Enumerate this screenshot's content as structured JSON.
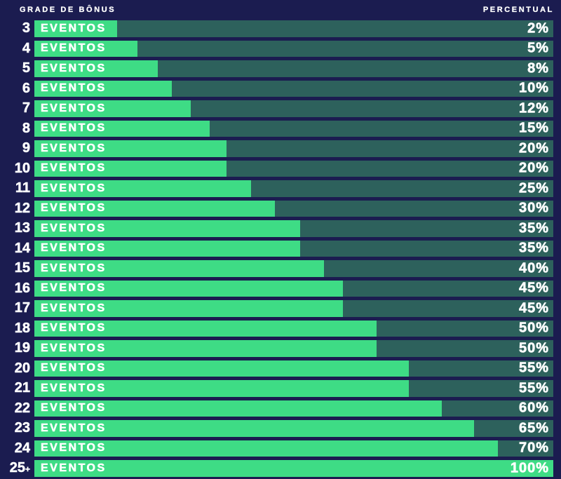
{
  "header": {
    "left": "GRADE DE BÔNUS",
    "right": "PERCENTUAL"
  },
  "colors": {
    "background": "#1b1c50",
    "track": "#2d615c",
    "fill": "#3edc85",
    "text": "#ffffff"
  },
  "chart_data": {
    "type": "bar",
    "orientation": "horizontal",
    "title": "GRADE DE BÔNUS",
    "xlabel": "PERCENTUAL",
    "ylabel": "GRADE DE BÔNUS",
    "bar_text": "EVENTOS",
    "categories": [
      "3",
      "4",
      "5",
      "6",
      "7",
      "8",
      "9",
      "10",
      "11",
      "12",
      "13",
      "14",
      "15",
      "16",
      "17",
      "18",
      "19",
      "20",
      "21",
      "22",
      "23",
      "24",
      "25+"
    ],
    "values": [
      2,
      5,
      8,
      10,
      12,
      15,
      20,
      20,
      25,
      30,
      35,
      35,
      40,
      45,
      45,
      50,
      50,
      55,
      55,
      60,
      65,
      70,
      100
    ],
    "value_labels": [
      "2%",
      "5%",
      "8%",
      "10%",
      "12%",
      "15%",
      "20%",
      "20%",
      "25%",
      "30%",
      "35%",
      "35%",
      "40%",
      "45%",
      "45%",
      "50%",
      "50%",
      "55%",
      "55%",
      "60%",
      "65%",
      "70%",
      "100%"
    ],
    "bar_fill_pct_of_track": [
      15.9,
      19.9,
      23.8,
      26.5,
      30.1,
      33.8,
      37.0,
      37.0,
      41.8,
      46.4,
      51.2,
      51.2,
      55.8,
      59.5,
      59.5,
      65.9,
      65.9,
      72.2,
      72.2,
      78.5,
      84.7,
      89.3,
      100
    ],
    "xlim": [
      0,
      100
    ],
    "grid": false,
    "legend": false
  }
}
